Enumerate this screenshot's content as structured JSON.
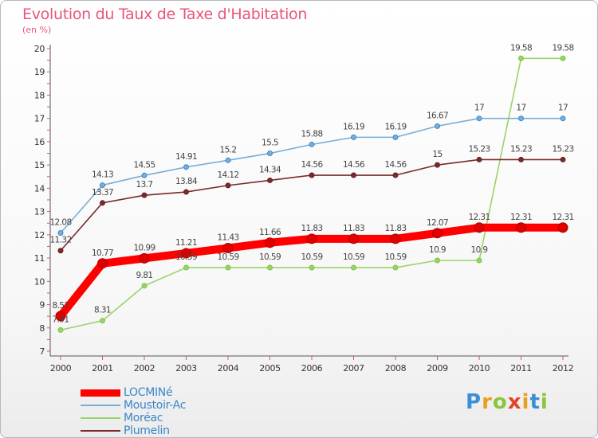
{
  "title": "Evolution du Taux de Taxe d'Habitation",
  "subtitle": "(en %)",
  "logo": {
    "text": "Proxiti",
    "colors": [
      "#3a8fd6",
      "#e8a020",
      "#8cc43c",
      "#e0452a"
    ]
  },
  "chart_data": {
    "type": "line",
    "title": "Evolution du Taux de Taxe d'Habitation",
    "ylabel": "(en %)",
    "xlabel": "",
    "x": [
      "2000",
      "2001",
      "2002",
      "2003",
      "2004",
      "2005",
      "2006",
      "2007",
      "2008",
      "2009",
      "2010",
      "2011",
      "2012"
    ],
    "ylim": [
      7,
      20
    ],
    "yticks": [
      7,
      8,
      9,
      10,
      11,
      12,
      13,
      14,
      15,
      16,
      17,
      18,
      19,
      20
    ],
    "grid": false,
    "legend_position": "bottom-left",
    "series": [
      {
        "name": "LOCMINé",
        "color": "#ff0000",
        "emphasis": true,
        "values": [
          8.51,
          10.77,
          10.99,
          11.21,
          11.43,
          11.66,
          11.83,
          11.83,
          11.83,
          12.07,
          12.31,
          12.31,
          12.31
        ],
        "labels": [
          "8.51",
          "10.77",
          "10.99",
          "11.21",
          "11.43",
          "11.66",
          "11.83",
          "11.83",
          "11.83",
          "12.07",
          "12.31",
          "12.31",
          "12.31"
        ]
      },
      {
        "name": "Moustoir-Ac",
        "color": "#7aaed6",
        "marker": "#3a86c8",
        "emphasis": false,
        "values": [
          12.08,
          14.13,
          14.55,
          14.91,
          15.2,
          15.5,
          15.88,
          16.19,
          16.19,
          16.67,
          17,
          17,
          17
        ],
        "labels": [
          "12.08",
          "14.13",
          "14.55",
          "14.91",
          "15.2",
          "15.5",
          "15.88",
          "16.19",
          "16.19",
          "16.67",
          "17",
          "17",
          "17"
        ]
      },
      {
        "name": "Moréac",
        "color": "#9bd36b",
        "marker": "#7cc43f",
        "emphasis": false,
        "values": [
          7.91,
          8.31,
          9.81,
          10.59,
          10.59,
          10.59,
          10.59,
          10.59,
          10.59,
          10.9,
          10.9,
          19.58,
          19.58
        ],
        "labels": [
          "7.91",
          "8.31",
          "9.81",
          "10.59",
          "10.59",
          "10.59",
          "10.59",
          "10.59",
          "10.59",
          "10.9",
          "10.9",
          "19.58",
          "19.58"
        ]
      },
      {
        "name": "Plumelin",
        "color": "#7a2a2a",
        "marker": "#6b1f1f",
        "emphasis": false,
        "values": [
          11.32,
          13.37,
          13.7,
          13.84,
          14.12,
          14.34,
          14.56,
          14.56,
          14.56,
          15,
          15.23,
          15.23,
          15.23
        ],
        "labels": [
          "11.32",
          "13.37",
          "13.7",
          "13.84",
          "14.12",
          "14.34",
          "14.56",
          "14.56",
          "14.56",
          "15",
          "15.23",
          "15.23",
          "15.23"
        ]
      }
    ]
  }
}
